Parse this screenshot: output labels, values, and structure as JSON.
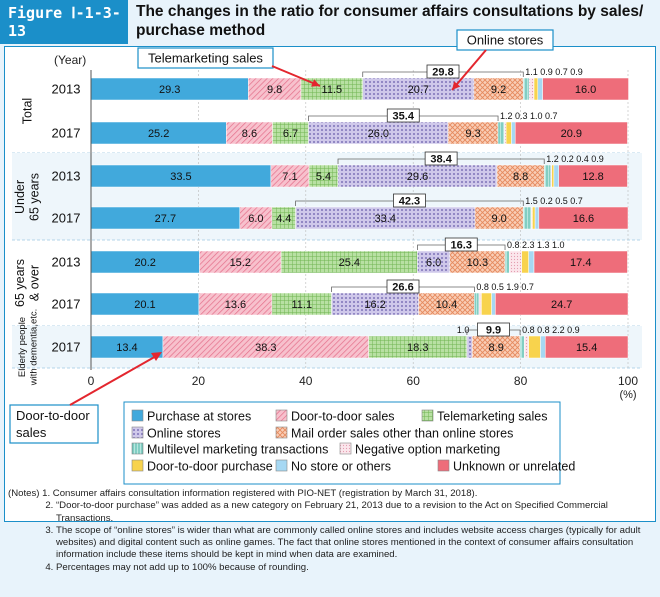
{
  "figure_label": "Figure Ⅰ-1-3-13",
  "title": "The changes in the ratio for consumer affairs consultations by sales/ purchase method",
  "chart_data": {
    "type": "bar",
    "orientation": "horizontal",
    "stacked": true,
    "unit_label": "(%)",
    "year_header": "(Year)",
    "xlim": [
      0,
      100
    ],
    "xticks": [
      0,
      20,
      40,
      60,
      80,
      100
    ],
    "groups": [
      {
        "label": "Total",
        "rows": [
          "2013",
          "2017"
        ]
      },
      {
        "label": "Under 65 years",
        "rows": [
          "2013",
          "2017"
        ]
      },
      {
        "label": "65 years & over",
        "rows": [
          "2013",
          "2017"
        ]
      },
      {
        "label": "Elderly people with dementia,etc.",
        "rows": [
          "2017"
        ]
      }
    ],
    "series": [
      {
        "name": "Purchase at stores",
        "color": "#41a9dc",
        "pattern": "solid"
      },
      {
        "name": "Door-to-door sales",
        "color": "#ee8ea3",
        "pattern": "diagonal"
      },
      {
        "name": "Telemarketing sales",
        "color": "#8cc872",
        "pattern": "grid"
      },
      {
        "name": "Online stores",
        "color": "#a59ad0",
        "pattern": "dots"
      },
      {
        "name": "Mail order sales other than online stores",
        "color": "#f3a883",
        "pattern": "crosshatch"
      },
      {
        "name": "Multilevel marketing transactions",
        "color": "#80cfc4",
        "pattern": "vertical"
      },
      {
        "name": "Negative option marketing",
        "color": "#f9d5df",
        "pattern": "dense"
      },
      {
        "name": "Door-to-door purchase",
        "color": "#f8d34d",
        "pattern": "solid"
      },
      {
        "name": "No store or others",
        "color": "#a6d8f3",
        "pattern": "solid"
      },
      {
        "name": "Unknown or unrelated",
        "color": "#ee6d7a",
        "pattern": "solid"
      }
    ],
    "rows": [
      {
        "year": "2013",
        "values": [
          29.3,
          9.8,
          11.5,
          20.7,
          9.2,
          1.1,
          0.9,
          0.7,
          0.9,
          16.0
        ],
        "labels": [
          "29.3",
          "9.8",
          "11.5",
          "20.7",
          "9.2",
          "1.1",
          "0.9",
          "0.7",
          "0.9",
          "16.0"
        ],
        "bracket": "29.8"
      },
      {
        "year": "2017",
        "values": [
          25.2,
          8.6,
          6.7,
          26.0,
          9.3,
          1.2,
          0.3,
          1.0,
          0.7,
          20.9
        ],
        "labels": [
          "25.2",
          "8.6",
          "6.7",
          "26.0",
          "9.3",
          "1.2",
          "0.3",
          "1.0",
          "0.7",
          "20.9"
        ],
        "bracket": "35.4"
      },
      {
        "year": "2013",
        "values": [
          33.5,
          7.1,
          5.4,
          29.6,
          8.8,
          1.2,
          0.2,
          0.4,
          0.9,
          12.8
        ],
        "labels": [
          "33.5",
          "7.1",
          "5.4",
          "29.6",
          "8.8",
          "1.2",
          "0.2",
          "0.4",
          "0.9",
          "12.8"
        ],
        "bracket": "38.4"
      },
      {
        "year": "2017",
        "values": [
          27.7,
          6.0,
          4.4,
          33.4,
          9.0,
          1.5,
          0.2,
          0.5,
          0.7,
          16.6
        ],
        "labels": [
          "27.7",
          "6.0",
          "4.4",
          "33.4",
          "9.0",
          "1.5",
          "0.2",
          "0.5",
          "0.7",
          "16.6"
        ],
        "bracket": "42.3"
      },
      {
        "year": "2013",
        "values": [
          20.2,
          15.2,
          25.4,
          6.0,
          10.3,
          0.8,
          2.3,
          1.3,
          1.0,
          17.4
        ],
        "labels": [
          "20.2",
          "15.2",
          "25.4",
          "6.0",
          "10.3",
          "0.8",
          "2.3",
          "1.3",
          "1.0",
          "17.4"
        ],
        "bracket": "16.3"
      },
      {
        "year": "2017",
        "values": [
          20.1,
          13.6,
          11.1,
          16.2,
          10.4,
          0.8,
          0.5,
          1.9,
          0.7,
          24.7
        ],
        "labels": [
          "20.1",
          "13.6",
          "11.1",
          "16.2",
          "10.4",
          "0.8",
          "0.5",
          "1.9",
          "0.7",
          "24.7"
        ],
        "bracket": "26.6"
      },
      {
        "year": "2017",
        "values": [
          13.4,
          38.3,
          18.3,
          1.0,
          8.9,
          0.8,
          0.8,
          2.2,
          0.9,
          15.4
        ],
        "labels": [
          "13.4",
          "38.3",
          "18.3",
          "1.0",
          "8.9",
          "0.8",
          "0.8",
          "2.2",
          "0.9",
          "15.4"
        ],
        "bracket": "9.9"
      }
    ],
    "callouts": [
      "Telemarketing sales",
      "Online stores",
      "Door-to-door sales"
    ]
  },
  "notes": [
    {
      "k": "(Notes) 1. ",
      "v": "Consumer affairs consultation information registered with PIO-NET (registration by March 31, 2018)."
    },
    {
      "k": "              2. ",
      "v": "“Door-to-door purchase” was added as a new category on February 21, 2013 due to a revision to the Act on Specified Commercial Transactions."
    },
    {
      "k": "              3. ",
      "v": "The scope of “online stores” is wider than what are commonly called online stores and includes website access charges (typically for adult websites) and digital content such as online games. The fact that online stores mentioned in the context of consumer affairs consultation information include these items should be kept in mind when data are examined."
    },
    {
      "k": "              4. ",
      "v": "Percentages may not add up to 100% because of rounding."
    }
  ]
}
